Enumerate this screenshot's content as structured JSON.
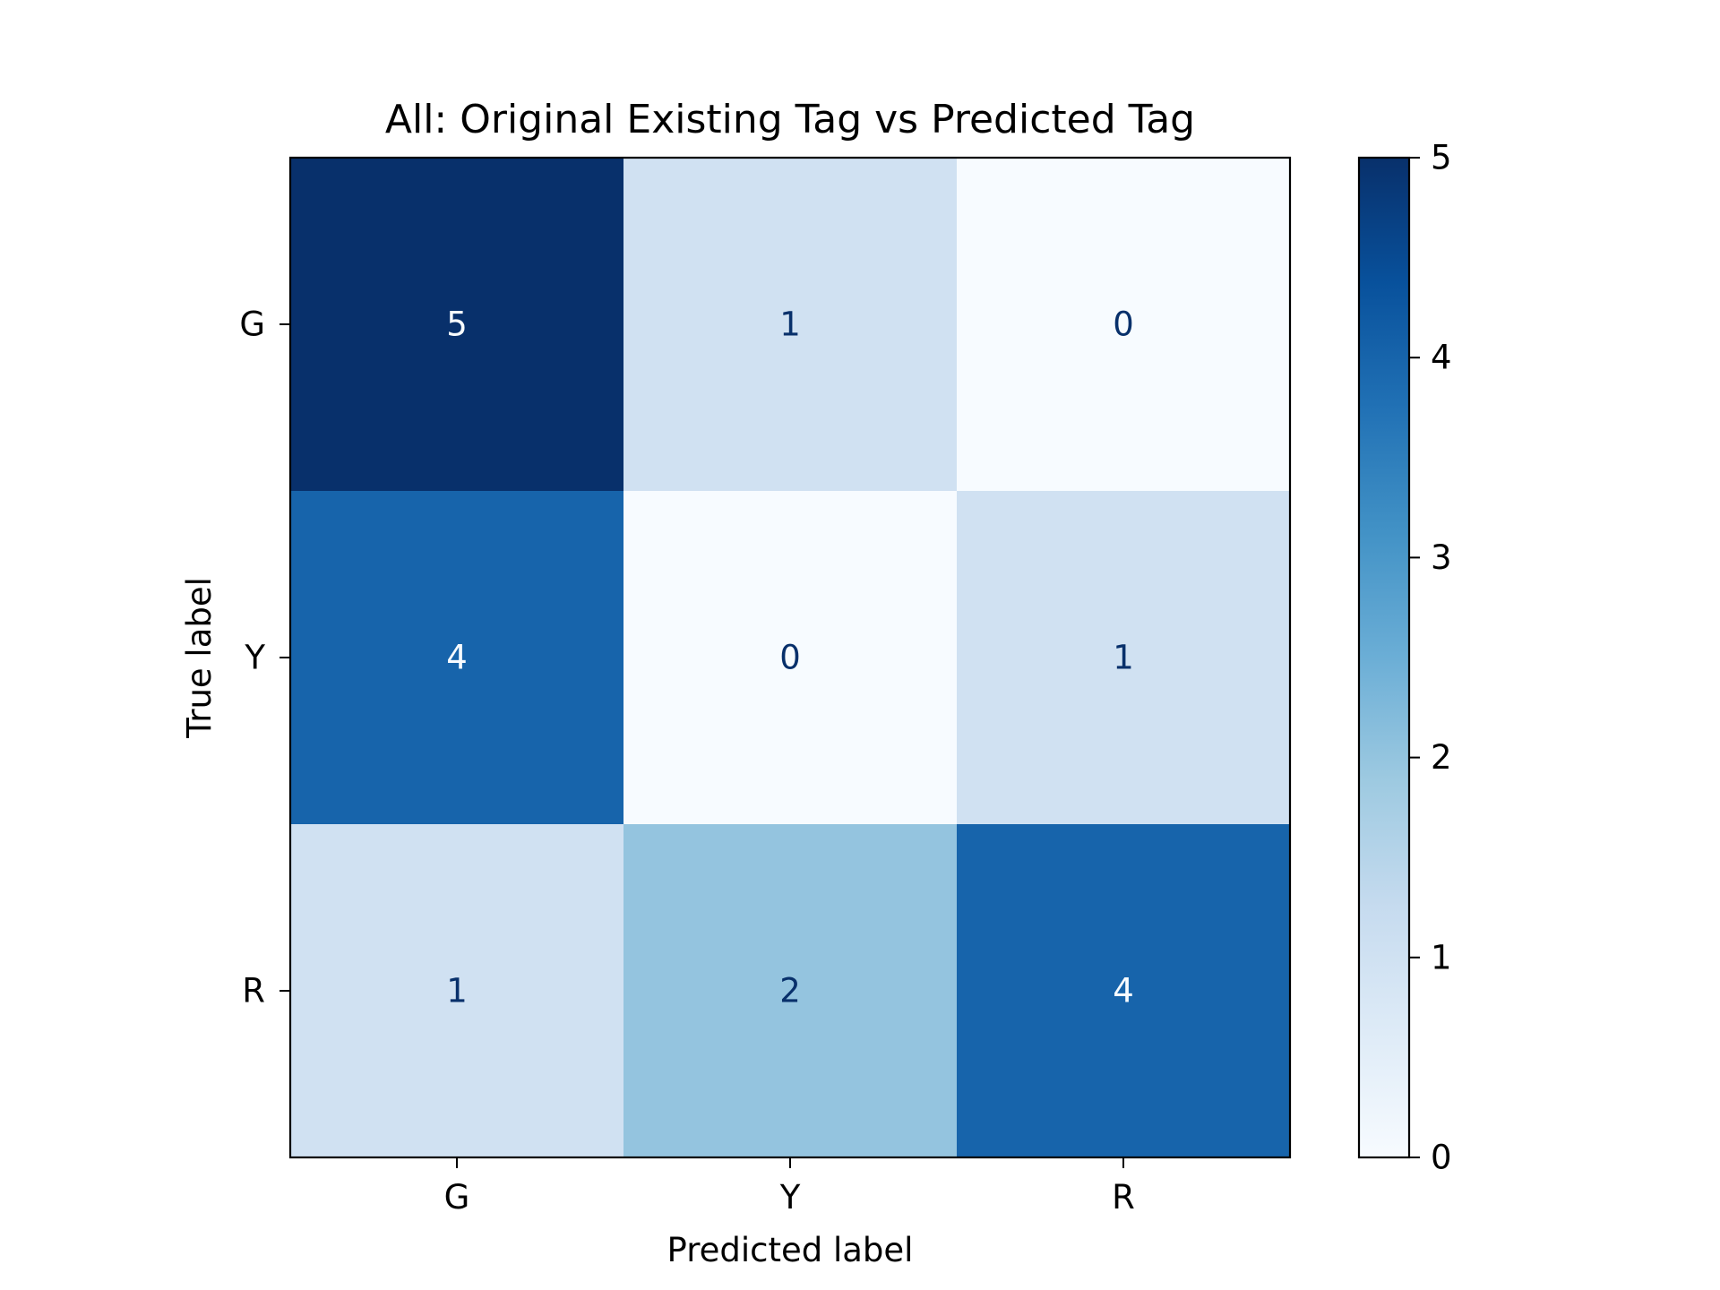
{
  "chart_data": {
    "type": "heatmap",
    "title": "All: Original Existing Tag vs Predicted Tag",
    "xlabel": "Predicted label",
    "ylabel": "True label",
    "x_categories": [
      "G",
      "Y",
      "R"
    ],
    "y_categories": [
      "G",
      "Y",
      "R"
    ],
    "matrix": [
      [
        5,
        1,
        0
      ],
      [
        4,
        0,
        1
      ],
      [
        1,
        2,
        4
      ]
    ],
    "colormap": "Blues",
    "colorbar": {
      "min": 0,
      "max": 5,
      "ticks": [
        0,
        1,
        2,
        3,
        4,
        5
      ],
      "tick_labels": [
        "0",
        "1",
        "2",
        "3",
        "4",
        "5"
      ]
    }
  },
  "colors": {
    "low": "#f7fbff",
    "high": "#08306b",
    "dark_text": "#08306b",
    "light_text": "#f7fbff",
    "axis": "#000000"
  }
}
